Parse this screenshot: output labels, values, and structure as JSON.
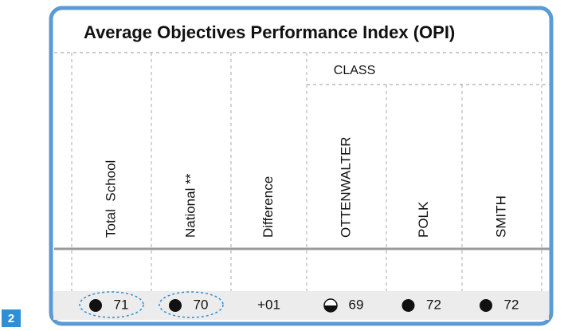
{
  "page_label": "2",
  "table": {
    "title": "Average Objectives Performance Index (OPI)",
    "group_header": "CLASS",
    "columns": [
      {
        "header": "Total  School",
        "value": 71,
        "marker": "filled",
        "circled": true
      },
      {
        "header": "National **",
        "value": 70,
        "marker": "filled",
        "circled": true
      },
      {
        "header": "Difference",
        "value": "+01",
        "marker": null,
        "circled": false
      },
      {
        "header": "OTTENWALTER",
        "value": 69,
        "marker": "half",
        "circled": false
      },
      {
        "header": "POLK",
        "value": 72,
        "marker": "filled",
        "circled": false
      },
      {
        "header": "SMITH",
        "value": 72,
        "marker": "filled",
        "circled": false
      }
    ]
  }
}
